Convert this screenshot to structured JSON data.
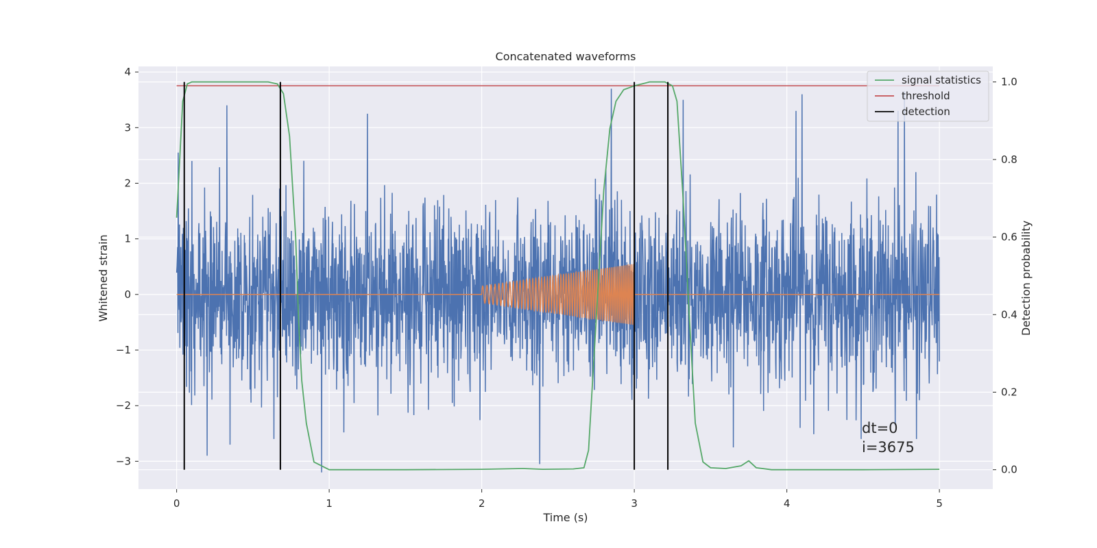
{
  "chart_data": {
    "type": "line",
    "title": "Concatenated waveforms",
    "xlabel": "Time (s)",
    "ylabel": "Whitened strain",
    "ylabel_right": "Detection probability",
    "xlim": [
      -0.25,
      5.35
    ],
    "ylim": [
      -3.5,
      4.1
    ],
    "ylim_right": [
      -0.05,
      1.04
    ],
    "xticks": [
      0,
      1,
      2,
      3,
      4,
      5
    ],
    "yticks": [
      -3,
      -2,
      -1,
      0,
      1,
      2,
      3,
      4
    ],
    "yticks_right": [
      0.0,
      0.2,
      0.4,
      0.6,
      0.8,
      1.0
    ],
    "xtick_labels": [
      "0",
      "1",
      "2",
      "3",
      "4",
      "5"
    ],
    "ytick_labels": [
      "−3",
      "−2",
      "−1",
      "0",
      "1",
      "2",
      "3",
      "4"
    ],
    "ytick_right_labels": [
      "0.0",
      "0.2",
      "0.4",
      "0.6",
      "0.8",
      "1.0"
    ],
    "grid": true,
    "legend_position": "top-right",
    "colors": {
      "strain": "#4c72b0",
      "waveform": "#dd8452",
      "signal_statistics": "#55a868",
      "threshold": "#c44e52",
      "detection": "#000000",
      "background": "#eaeaf2",
      "grid": "#ffffff"
    },
    "series": [
      {
        "name": "",
        "axis": "left",
        "style": "noise",
        "x_range": [
          0,
          5
        ],
        "amplitude_sigma": 0.8,
        "extremes": [
          {
            "x": 0.01,
            "y": 2.55
          },
          {
            "x": 0.1,
            "y": 2.4
          },
          {
            "x": 0.2,
            "y": -2.0
          },
          {
            "x": 0.33,
            "y": 3.4
          },
          {
            "x": 0.2,
            "y": -2.9
          },
          {
            "x": 0.35,
            "y": -2.7
          },
          {
            "x": 0.95,
            "y": -3.2
          },
          {
            "x": 1.25,
            "y": 3.25
          },
          {
            "x": 2.38,
            "y": -3.05
          },
          {
            "x": 2.85,
            "y": 3.7
          },
          {
            "x": 3.32,
            "y": 3.5
          },
          {
            "x": 3.65,
            "y": -2.75
          },
          {
            "x": 4.06,
            "y": 3.3
          },
          {
            "x": 4.1,
            "y": 3.6
          },
          {
            "x": 4.73,
            "y": 3.3
          },
          {
            "x": 4.77,
            "y": 3.65
          },
          {
            "x": 4.85,
            "y": -2.6
          }
        ]
      },
      {
        "name": "",
        "axis": "left",
        "style": "chirp",
        "x_range": [
          0,
          5
        ],
        "chirp_start": 2.0,
        "chirp_end": 3.0,
        "amplitude_start": 0.15,
        "amplitude_end": 0.55,
        "freq_start": 35,
        "freq_end": 80
      },
      {
        "name": "signal statistics",
        "axis": "right",
        "x": [
          0.0,
          0.02,
          0.04,
          0.07,
          0.1,
          0.2,
          0.4,
          0.6,
          0.66,
          0.7,
          0.74,
          0.78,
          0.8,
          0.82,
          0.85,
          0.9,
          1.0,
          1.5,
          2.0,
          2.27,
          2.4,
          2.6,
          2.67,
          2.7,
          2.73,
          2.77,
          2.8,
          2.84,
          2.88,
          2.93,
          3.0,
          3.05,
          3.1,
          3.2,
          3.25,
          3.28,
          3.32,
          3.36,
          3.4,
          3.45,
          3.5,
          3.6,
          3.7,
          3.75,
          3.8,
          3.9,
          4.5,
          5.0
        ],
        "y": [
          0.65,
          0.8,
          0.95,
          0.995,
          1.0,
          1.0,
          1.0,
          1.0,
          0.995,
          0.97,
          0.86,
          0.6,
          0.38,
          0.23,
          0.12,
          0.02,
          0.0,
          0.0,
          0.001,
          0.003,
          0.001,
          0.002,
          0.005,
          0.05,
          0.25,
          0.52,
          0.72,
          0.88,
          0.95,
          0.98,
          0.99,
          0.995,
          1.0,
          1.0,
          0.99,
          0.95,
          0.7,
          0.4,
          0.12,
          0.02,
          0.005,
          0.003,
          0.01,
          0.023,
          0.005,
          0.0,
          0.0,
          0.001
        ]
      },
      {
        "name": "threshold",
        "axis": "right",
        "x": [
          0,
          5
        ],
        "y": [
          0.99,
          0.99
        ]
      },
      {
        "name": "detection",
        "axis": "right",
        "x": [
          0.05,
          0.68,
          3.0,
          3.22
        ],
        "y_range": [
          0.0,
          1.0
        ]
      }
    ],
    "legend": [
      "signal statistics",
      "threshold",
      "detection"
    ],
    "annotation": [
      "dt=0",
      "i=3675"
    ]
  }
}
